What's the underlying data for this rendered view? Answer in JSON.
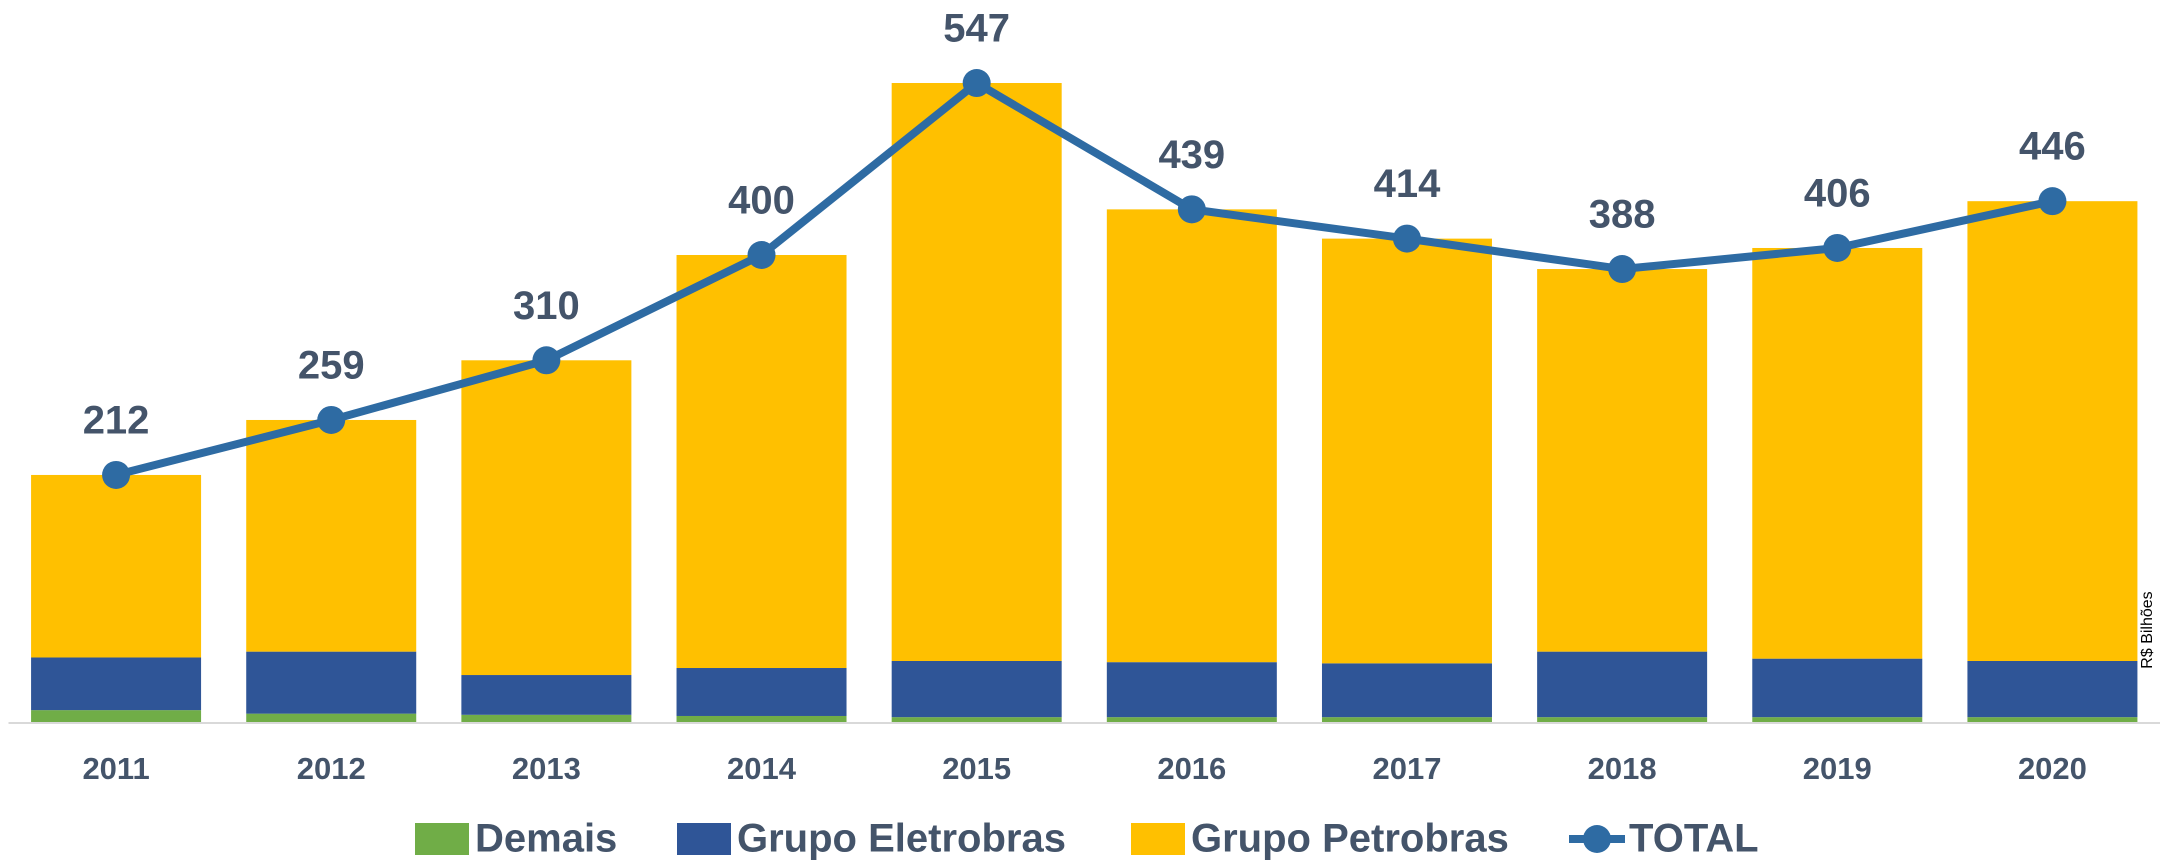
{
  "chart_data": {
    "type": "bar",
    "stacked": true,
    "y_label": "R$ Bilhões",
    "categories": [
      "2011",
      "2012",
      "2013",
      "2014",
      "2015",
      "2016",
      "2017",
      "2018",
      "2019",
      "2020"
    ],
    "series": [
      {
        "name": "Demais",
        "color": "#70ad47",
        "values": [
          11,
          8,
          7,
          6,
          5,
          5,
          5,
          5,
          5,
          5
        ]
      },
      {
        "name": "Grupo Eletrobras",
        "color": "#2f5597",
        "values": [
          45,
          53,
          34,
          41,
          48,
          47,
          46,
          56,
          50,
          48
        ]
      },
      {
        "name": "Grupo Petrobras",
        "color": "#ffc000",
        "values": [
          156,
          198,
          269,
          353,
          494,
          387,
          363,
          327,
          351,
          393
        ]
      },
      {
        "name": "TOTAL",
        "type": "line",
        "color": "#2e6ba3",
        "values": [
          212,
          259,
          310,
          400,
          547,
          439,
          414,
          388,
          406,
          446
        ]
      }
    ],
    "ylim": [
      0,
      600
    ],
    "legend": "bottom",
    "grid": false
  }
}
